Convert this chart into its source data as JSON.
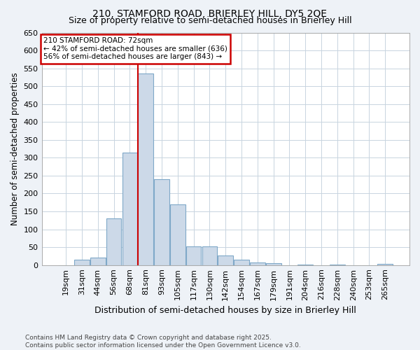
{
  "title1": "210, STAMFORD ROAD, BRIERLEY HILL, DY5 2QE",
  "title2": "Size of property relative to semi-detached houses in Brierley Hill",
  "xlabel": "Distribution of semi-detached houses by size in Brierley Hill",
  "ylabel": "Number of semi-detached properties",
  "categories": [
    "19sqm",
    "31sqm",
    "44sqm",
    "56sqm",
    "68sqm",
    "81sqm",
    "93sqm",
    "105sqm",
    "117sqm",
    "130sqm",
    "142sqm",
    "154sqm",
    "167sqm",
    "179sqm",
    "191sqm",
    "204sqm",
    "216sqm",
    "228sqm",
    "240sqm",
    "253sqm",
    "265sqm"
  ],
  "values": [
    0,
    15,
    20,
    130,
    315,
    535,
    240,
    170,
    53,
    53,
    27,
    15,
    7,
    5,
    0,
    2,
    0,
    2,
    0,
    0,
    3
  ],
  "bar_color": "#ccd9e8",
  "bar_edge_color": "#7fa8c8",
  "vline_color": "#cc0000",
  "vline_x_index": 4.5,
  "ylim": [
    0,
    650
  ],
  "yticks": [
    0,
    50,
    100,
    150,
    200,
    250,
    300,
    350,
    400,
    450,
    500,
    550,
    600,
    650
  ],
  "annotation_line1": "210 STAMFORD ROAD: 72sqm",
  "annotation_line2": "← 42% of semi-detached houses are smaller (636)",
  "annotation_line3": "56% of semi-detached houses are larger (843) →",
  "annotation_box_color": "#cc0000",
  "annotation_box_facecolor": "#ffffff",
  "footer1": "Contains HM Land Registry data © Crown copyright and database right 2025.",
  "footer2": "Contains public sector information licensed under the Open Government Licence v3.0.",
  "bg_color": "#eef2f7",
  "plot_bg_color": "#ffffff",
  "grid_color": "#c8d4e0",
  "title1_fontsize": 10,
  "title2_fontsize": 9
}
